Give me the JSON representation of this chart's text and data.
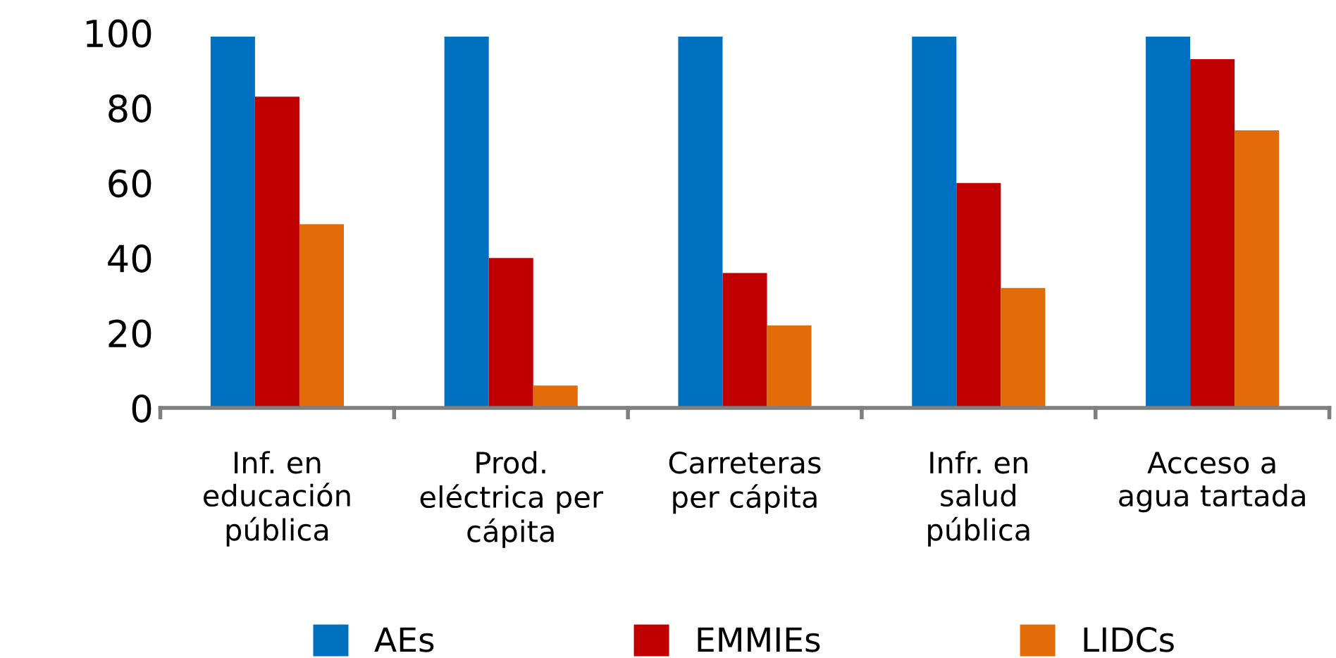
{
  "chart_data": {
    "type": "bar",
    "categories": [
      "Inf. en\neducación\npública",
      "Prod.\neléctrica per\ncápita",
      "Carreteras\nper cápita",
      "Infr. en\nsalud\npública",
      "Acceso a\nagua tartada"
    ],
    "series": [
      {
        "name": "AEs",
        "color": "#0070c0",
        "values": [
          99,
          99,
          99,
          99,
          99
        ]
      },
      {
        "name": "EMMIEs",
        "color": "#c00000",
        "values": [
          83,
          40,
          36,
          60,
          93
        ]
      },
      {
        "name": "LIDCs",
        "color": "#e36c09",
        "values": [
          49,
          6,
          22,
          32,
          74
        ]
      }
    ],
    "ylim": [
      0,
      100
    ],
    "yticks": [
      0,
      20,
      40,
      60,
      80,
      100
    ],
    "grid": false,
    "legend": "bottom"
  }
}
